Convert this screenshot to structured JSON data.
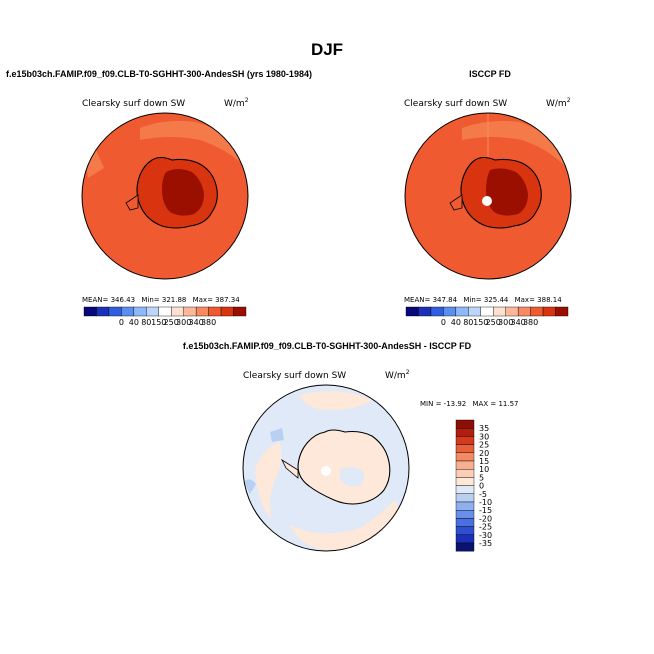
{
  "figure": {
    "title": "DJF",
    "left_panel_title": "f.e15b03ch.FAMIP.f09_f09.CLB-T0-SGHHT-300-AndesSH (yrs 1980-1984)",
    "right_panel_title": "ISCCP FD",
    "diff_panel_title": "f.e15b03ch.FAMIP.f09_f09.CLB-T0-SGHHT-300-AndesSH - ISCCP FD"
  },
  "chart_data": [
    {
      "type": "heatmap",
      "projection": "south-polar-stereographic",
      "variable_label": "Clearsky surf down SW",
      "units_label": "W/m",
      "units_superscript": "2",
      "stats": {
        "mean_label": "MEAN=",
        "mean": "346.43",
        "min_label": "Min=",
        "min": "321.88",
        "max_label": "Max=",
        "max": "387.34"
      },
      "colorbar_levels": [
        "0",
        "40",
        "80",
        "150",
        "250",
        "300",
        "340",
        "380"
      ],
      "colorbar_colors": [
        "#08087a",
        "#1c2fb8",
        "#2f5fe0",
        "#5a8ff0",
        "#8fb8f8",
        "#bcd6fb",
        "#ffffff",
        "#fde0cf",
        "#fbb89a",
        "#f78a62",
        "#ef5a30",
        "#d8340f",
        "#9a0f00"
      ]
    },
    {
      "type": "heatmap",
      "projection": "south-polar-stereographic",
      "variable_label": "Clearsky surf down SW",
      "units_label": "W/m",
      "units_superscript": "2",
      "stats": {
        "mean_label": "MEAN=",
        "mean": "347.84",
        "min_label": "Min=",
        "min": "325.44",
        "max_label": "Max=",
        "max": "388.14"
      },
      "colorbar_levels": [
        "0",
        "40",
        "80",
        "150",
        "250",
        "300",
        "340",
        "380"
      ],
      "colorbar_colors": [
        "#08087a",
        "#1c2fb8",
        "#2f5fe0",
        "#5a8ff0",
        "#8fb8f8",
        "#bcd6fb",
        "#ffffff",
        "#fde0cf",
        "#fbb89a",
        "#f78a62",
        "#ef5a30",
        "#d8340f",
        "#9a0f00"
      ]
    },
    {
      "type": "heatmap",
      "projection": "south-polar-stereographic",
      "variable_label": "Clearsky surf down SW",
      "units_label": "W/m",
      "units_superscript": "2",
      "stats": {
        "min_label": "MIN =",
        "min": "-13.92",
        "max_label": "MAX =",
        "max": "11.57"
      },
      "colorbar_levels": [
        "35",
        "30",
        "25",
        "20",
        "15",
        "10",
        "5",
        "0",
        "-5",
        "-10",
        "-15",
        "-20",
        "-25",
        "-30",
        "-35"
      ],
      "colorbar_colors": [
        "#8a0f05",
        "#b01e0d",
        "#d63a1c",
        "#e8603a",
        "#f28a64",
        "#f8ae8f",
        "#fbcfb6",
        "#fde8d9",
        "#dfe9f8",
        "#b9d0f3",
        "#8fb0ee",
        "#6a8fe8",
        "#4a6fe0",
        "#2f4fd0",
        "#1c2fb8",
        "#0a1470"
      ]
    }
  ]
}
